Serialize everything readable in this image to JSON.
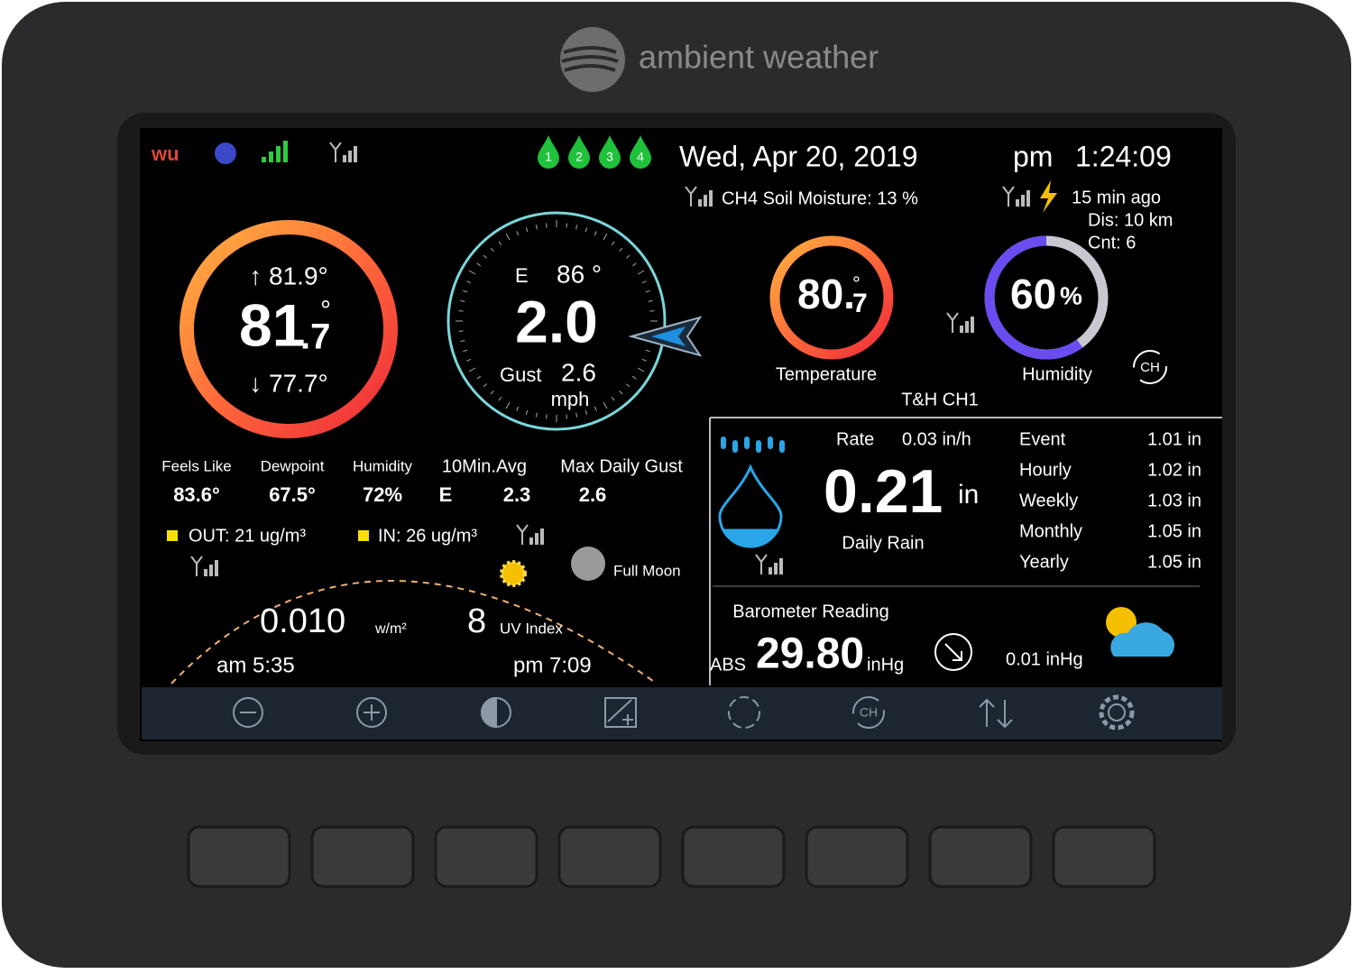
{
  "brand": "ambient weather",
  "status": {
    "channels": [
      "1",
      "2",
      "3",
      "4"
    ],
    "date": "Wed,  Apr  20,  2019",
    "ampm": "pm",
    "time": "1:24:09",
    "soil": "CH4 Soil Moisture: 13 %",
    "lightning": {
      "last": "15 min ago",
      "distance": "Dis: 10 km",
      "count": "Cnt:  6"
    }
  },
  "outdoor": {
    "high": "↑ 81.9°",
    "temp_int": "81",
    "temp_unit": "°",
    "temp_dec": ".7",
    "low": "↓ 77.7°"
  },
  "wind": {
    "dir": "E",
    "deg": "86 °",
    "speed": "2.0",
    "gust_label": "Gust",
    "gust": "2.6",
    "unit": "mph"
  },
  "channel": {
    "temp_int": "80.",
    "temp_unit": "°",
    "temp_dec": "7",
    "temp_label": "Temperature",
    "humidity": "60",
    "humidity_unit": "%",
    "humidity_label": "Humidity",
    "name": "T&H CH1",
    "ch_icon": "CH"
  },
  "stats": [
    {
      "label": "Feels Like",
      "value": "83.6°"
    },
    {
      "label": "Dewpoint",
      "value": "67.5°"
    },
    {
      "label": "Humidity",
      "value": "72%"
    },
    {
      "label": "10Min.Avg",
      "value": "E",
      "value2": "2.3"
    },
    {
      "label": "Max Daily Gust",
      "value": "2.6"
    }
  ],
  "air": {
    "out": "OUT:  21 ug/m³",
    "in": "IN:  26 ug/m³"
  },
  "moon": "Full Moon",
  "solar": {
    "radiation": "0.010",
    "radiation_unit": "w/m²",
    "uv": "8",
    "uv_label": "UV Index",
    "sunrise": "am 5:35",
    "sunset": "pm 7:09"
  },
  "rain": {
    "rate_label": "Rate",
    "rate": "0.03 in/h",
    "daily": "0.21",
    "unit": "in",
    "daily_label": "Daily Rain",
    "totals": [
      {
        "label": "Event",
        "value": "1.01 in"
      },
      {
        "label": "Hourly",
        "value": "1.02 in"
      },
      {
        "label": "Weekly",
        "value": "1.03 in"
      },
      {
        "label": "Monthly",
        "value": "1.05 in"
      },
      {
        "label": "Yearly",
        "value": "1.05 in"
      }
    ]
  },
  "barometer": {
    "title": "Barometer Reading",
    "abs": "ABS",
    "value": "29.80",
    "unit": "inHg",
    "trend": "0.01 inHg"
  },
  "toolbar": {
    "ch_icon": "CH"
  }
}
